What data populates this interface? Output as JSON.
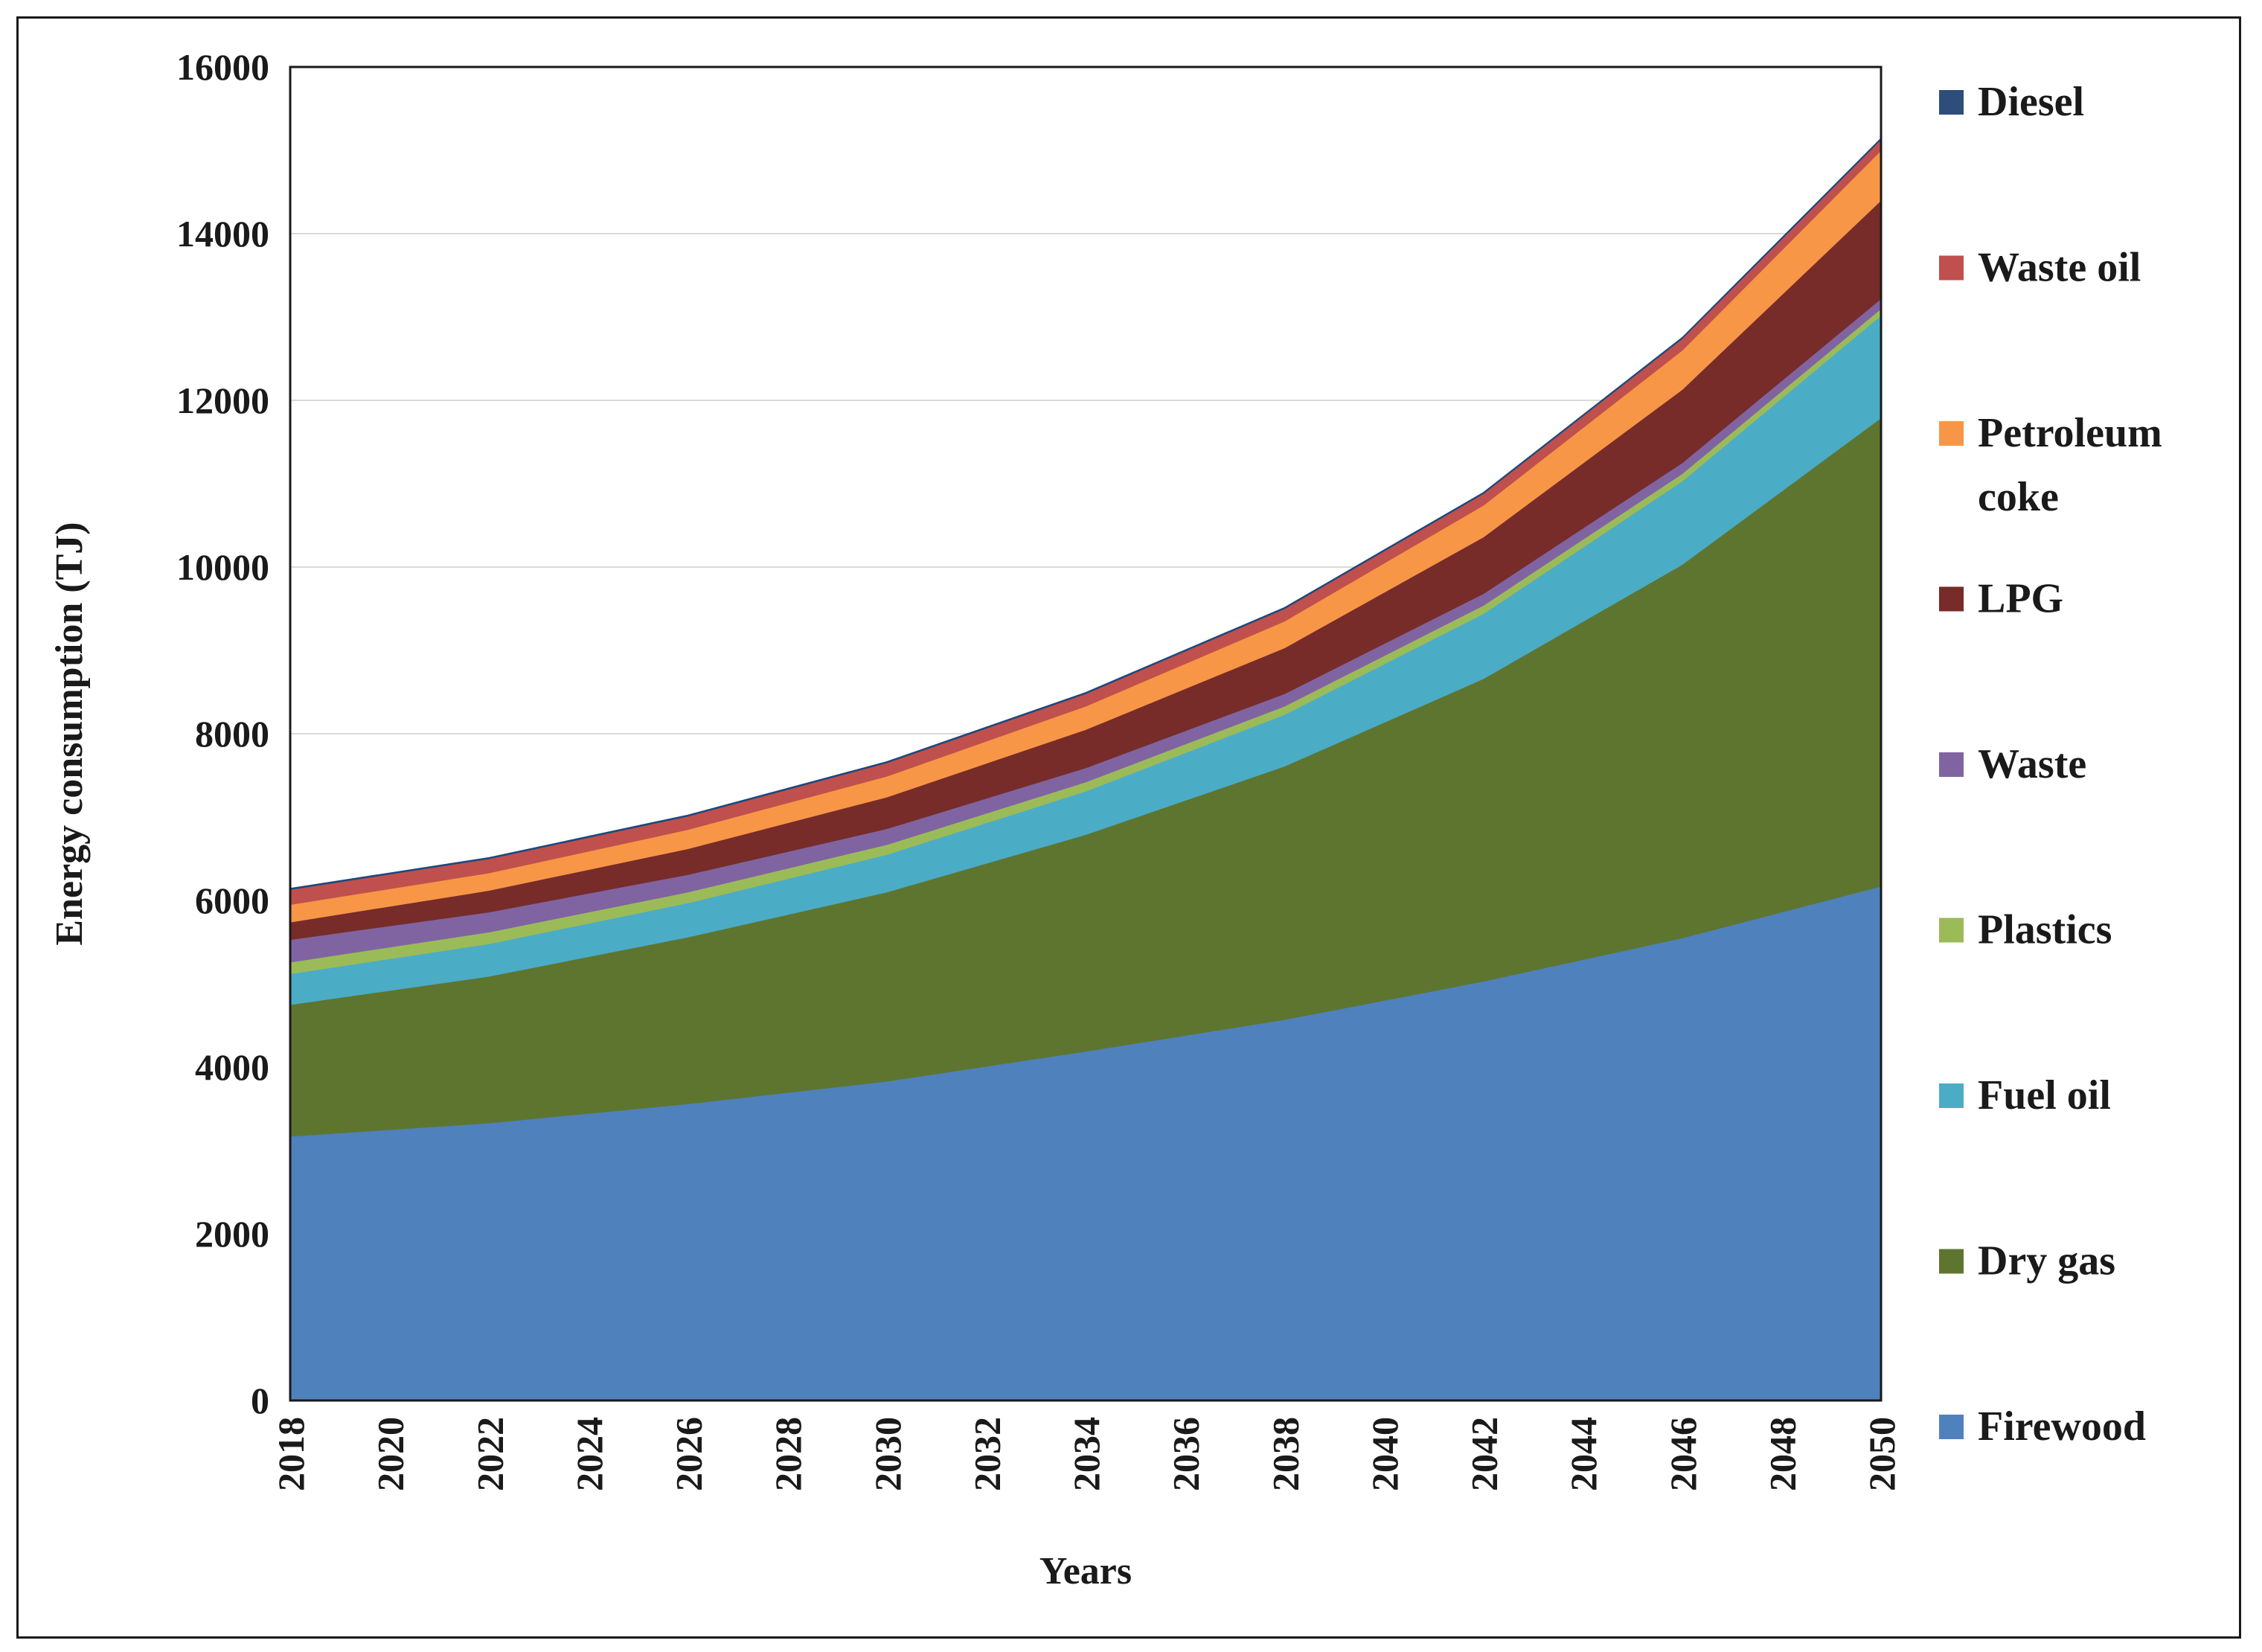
{
  "chart_data": {
    "type": "area",
    "stacked": true,
    "title": "",
    "xlabel": "Years",
    "ylabel": "Energy consumption (TJ)",
    "ylim": [
      0,
      16000
    ],
    "yticks": [
      0,
      2000,
      4000,
      6000,
      8000,
      10000,
      12000,
      14000,
      16000
    ],
    "xlim": [
      2018,
      2050
    ],
    "xticks": [
      2018,
      2020,
      2022,
      2024,
      2026,
      2028,
      2030,
      2032,
      2034,
      2036,
      2038,
      2040,
      2042,
      2044,
      2046,
      2048,
      2050
    ],
    "grid": "horizontal",
    "legend_position": "right",
    "x": [
      2018,
      2022,
      2026,
      2030,
      2034,
      2038,
      2042,
      2046,
      2050
    ],
    "series": [
      {
        "name": "Firewood",
        "color": "#4f81bd",
        "values": [
          3170,
          3330,
          3560,
          3830,
          4190,
          4570,
          5030,
          5550,
          6170
        ]
      },
      {
        "name": "Dry gas",
        "color": "#5e7530",
        "values": [
          1580,
          1760,
          2000,
          2270,
          2600,
          3040,
          3630,
          4480,
          5620
        ]
      },
      {
        "name": "Fuel oil",
        "color": "#4bacc6",
        "values": [
          370,
          390,
          410,
          450,
          520,
          620,
          780,
          1000,
          1230
        ]
      },
      {
        "name": "Plastics",
        "color": "#9bbb59",
        "values": [
          140,
          140,
          130,
          120,
          110,
          100,
          100,
          90,
          80
        ]
      },
      {
        "name": "Waste",
        "color": "#8064a2",
        "values": [
          270,
          240,
          210,
          190,
          170,
          150,
          140,
          130,
          120
        ]
      },
      {
        "name": "LPG",
        "color": "#772c2a",
        "values": [
          210,
          260,
          310,
          380,
          460,
          550,
          680,
          880,
          1180
        ]
      },
      {
        "name": "Petroleum coke",
        "color": "#f79646",
        "values": [
          210,
          210,
          230,
          250,
          280,
          320,
          380,
          470,
          600
        ]
      },
      {
        "name": "Waste oil",
        "color": "#c0504d",
        "values": [
          180,
          170,
          160,
          160,
          150,
          150,
          140,
          140,
          130
        ]
      },
      {
        "name": "Diesel",
        "color": "#1f497d",
        "values": [
          15,
          15,
          15,
          15,
          15,
          15,
          15,
          15,
          15
        ]
      }
    ]
  },
  "legend": {
    "items": [
      {
        "label_lines": [
          "Diesel"
        ],
        "color": "#2e4d7b"
      },
      {
        "label_lines": [
          "Waste oil"
        ],
        "color": "#c0504d"
      },
      {
        "label_lines": [
          "Petroleum",
          "coke"
        ],
        "color": "#f79646"
      },
      {
        "label_lines": [
          "LPG"
        ],
        "color": "#772c2a"
      },
      {
        "label_lines": [
          "Waste"
        ],
        "color": "#8064a2"
      },
      {
        "label_lines": [
          "Plastics"
        ],
        "color": "#9bbb59"
      },
      {
        "label_lines": [
          "Fuel oil"
        ],
        "color": "#4bacc6"
      },
      {
        "label_lines": [
          "Dry gas"
        ],
        "color": "#5e7530"
      },
      {
        "label_lines": [
          "Firewood"
        ],
        "color": "#4f81bd"
      }
    ]
  }
}
